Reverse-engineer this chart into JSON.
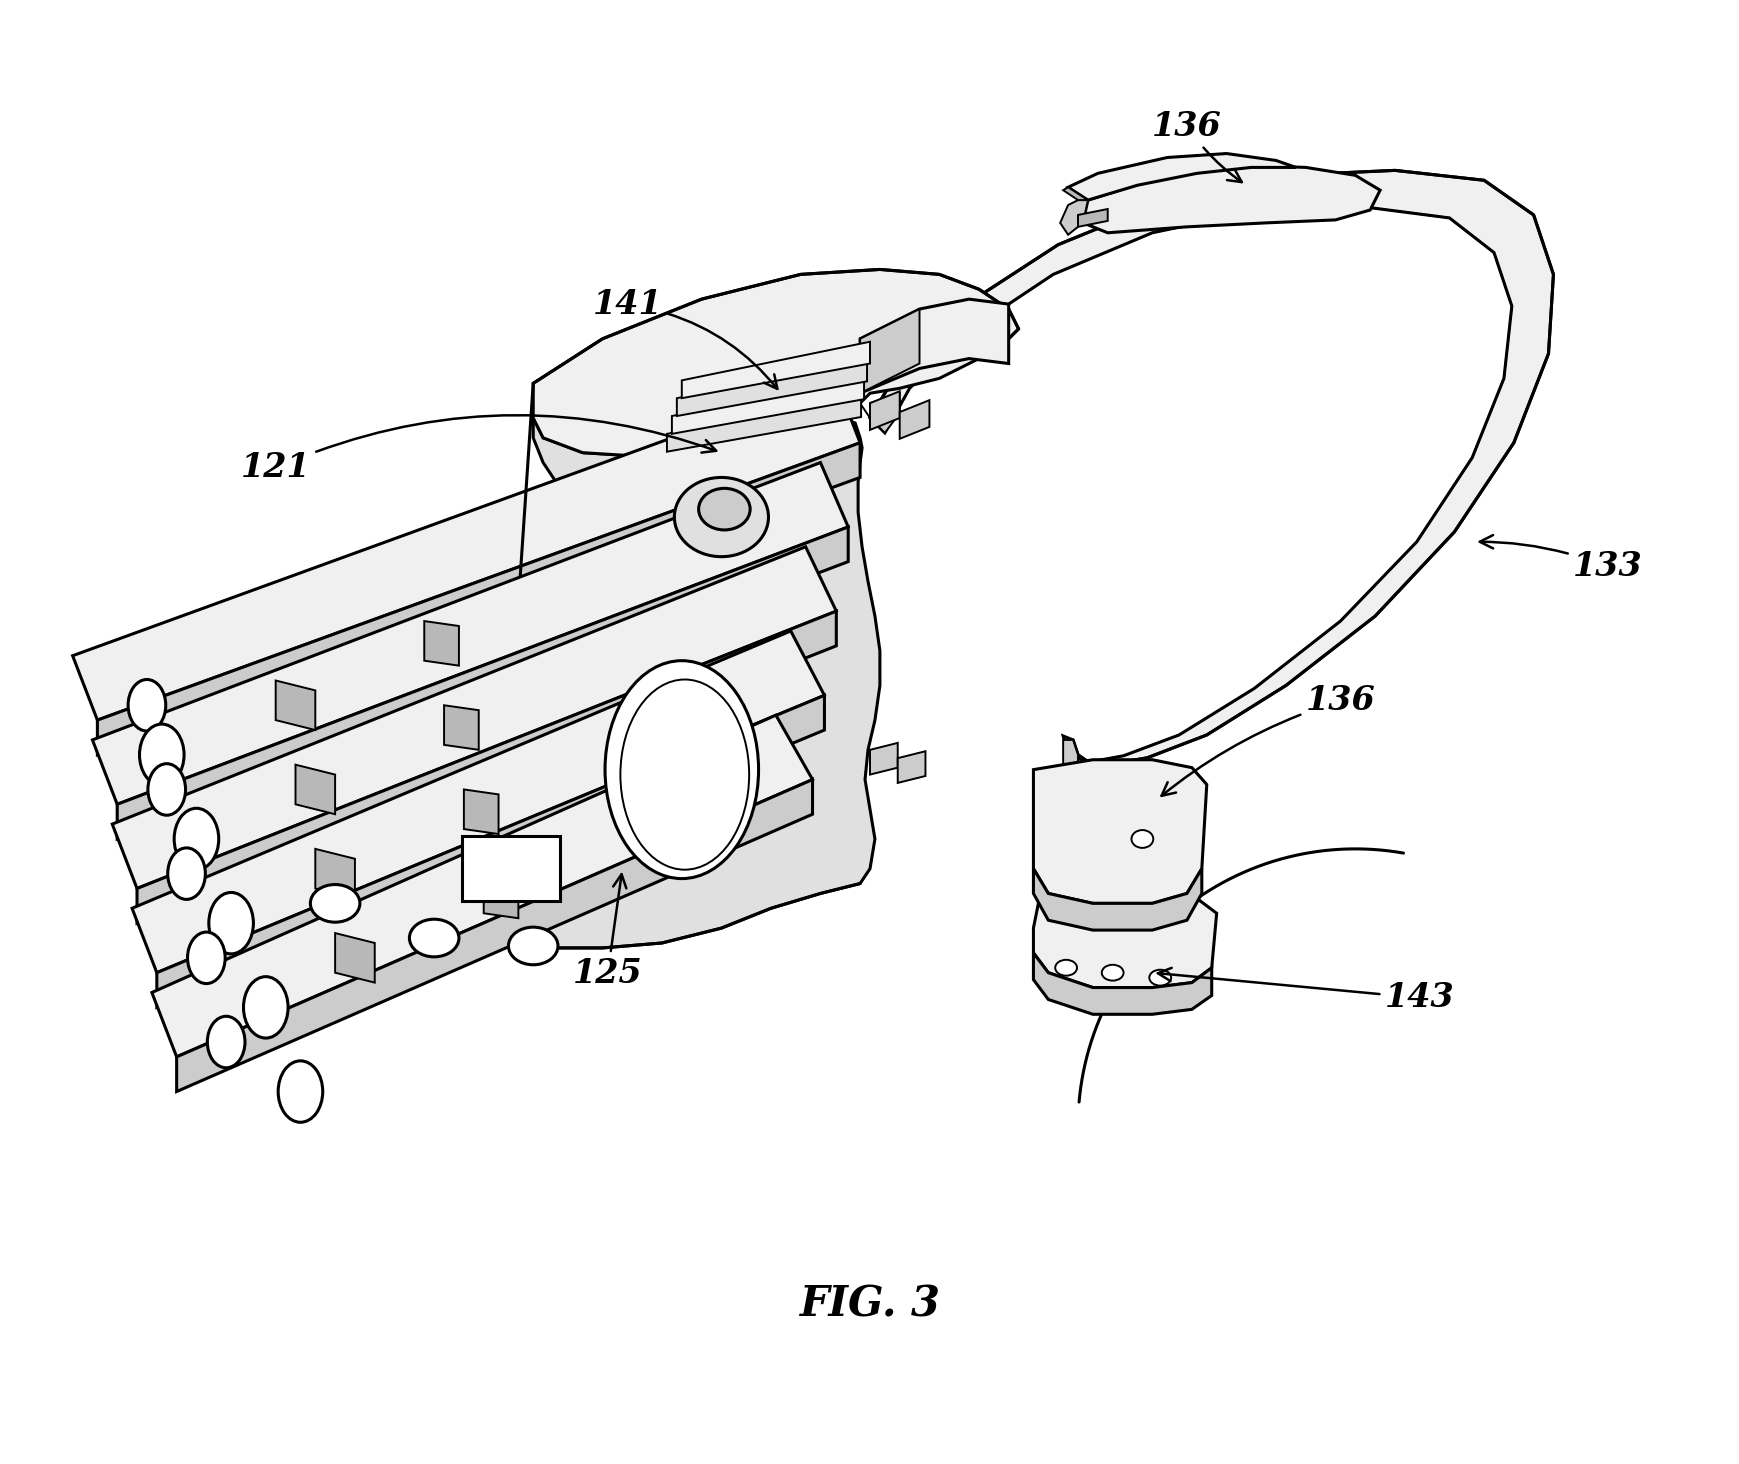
{
  "figure_label": "FIG. 3",
  "background_color": "#ffffff",
  "lw_main": 2.2,
  "lw_thin": 1.4,
  "lw_thick": 2.8,
  "fill_light": "#f0f0f0",
  "fill_mid": "#e0e0e0",
  "fill_dark": "#cccccc",
  "fill_darker": "#b8b8b8",
  "line_color": "#000000",
  "figsize": [
    17.39,
    14.64
  ],
  "dpi": 100
}
